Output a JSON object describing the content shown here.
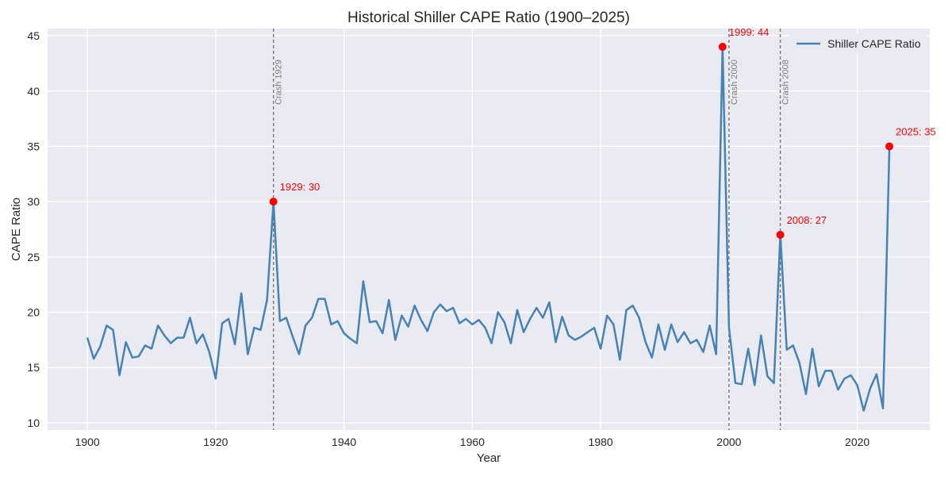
{
  "chart_data": {
    "type": "line",
    "title": "Historical Shiller CAPE Ratio (1900–2025)",
    "xlabel": "Year",
    "ylabel": "CAPE Ratio",
    "xlim": [
      1893.8,
      2031.3
    ],
    "ylim": [
      9.35,
      45.65
    ],
    "grid": true,
    "legend_position": "top-right",
    "x_ticks": [
      1900,
      1920,
      1940,
      1960,
      1980,
      2000,
      2020
    ],
    "y_ticks": [
      10,
      15,
      20,
      25,
      30,
      35,
      40,
      45
    ],
    "series": [
      {
        "name": "Shiller CAPE Ratio",
        "color": "#4682b4",
        "x_start": 1900,
        "values": [
          17.7,
          15.8,
          16.9,
          18.8,
          18.4,
          14.3,
          17.3,
          15.9,
          16.0,
          17.0,
          16.7,
          18.8,
          17.9,
          17.2,
          17.7,
          17.7,
          19.5,
          17.2,
          18.0,
          16.4,
          14.0,
          19.0,
          19.4,
          17.1,
          21.7,
          16.2,
          18.6,
          18.4,
          21.1,
          30.0,
          19.2,
          19.5,
          17.8,
          16.2,
          18.8,
          19.5,
          21.2,
          21.2,
          18.9,
          19.2,
          18.1,
          17.6,
          17.2,
          22.8,
          19.1,
          19.2,
          18.1,
          21.1,
          17.5,
          19.7,
          18.7,
          20.6,
          19.3,
          18.3,
          20.0,
          20.7,
          20.1,
          20.4,
          19.0,
          19.4,
          18.9,
          19.3,
          18.6,
          17.2,
          20.0,
          19.1,
          17.2,
          20.2,
          18.2,
          19.4,
          20.4,
          19.5,
          20.9,
          17.3,
          19.6,
          17.9,
          17.5,
          17.8,
          18.2,
          18.6,
          16.7,
          19.7,
          18.9,
          15.7,
          20.2,
          20.6,
          19.5,
          17.3,
          15.9,
          18.9,
          16.6,
          18.9,
          17.3,
          18.2,
          17.2,
          17.5,
          16.4,
          18.8,
          16.2,
          44.0,
          18.6,
          13.6,
          13.5,
          16.7,
          13.4,
          17.9,
          14.2,
          13.6,
          27.0,
          16.6,
          17.0,
          15.4,
          12.6,
          16.7,
          13.3,
          14.7,
          14.7,
          13.0,
          14.0,
          14.3,
          13.4,
          11.1,
          13.1,
          14.4,
          11.3,
          35.0
        ]
      }
    ],
    "highlights": [
      {
        "year": 1929,
        "value": 30,
        "label": "1929: 30"
      },
      {
        "year": 1999,
        "value": 44,
        "label": "1999: 44"
      },
      {
        "year": 2008,
        "value": 27,
        "label": "2008: 27"
      },
      {
        "year": 2025,
        "value": 35,
        "label": "2025: 35"
      }
    ],
    "highlight_color": "#ff0000",
    "vlines": [
      {
        "year": 1929,
        "label": "Crash 1929"
      },
      {
        "year": 2000,
        "label": "Crash 2000"
      },
      {
        "year": 2008,
        "label": "Crash 2008"
      }
    ]
  }
}
